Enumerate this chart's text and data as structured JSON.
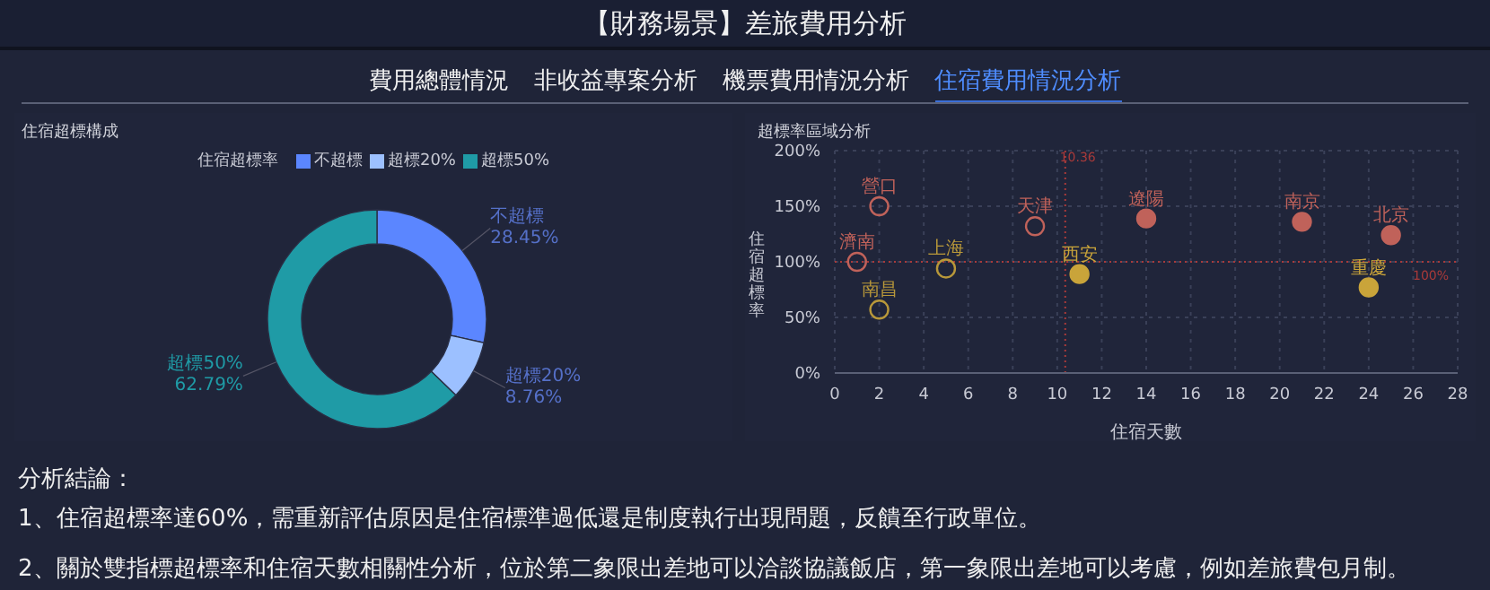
{
  "chart_data": [
    {
      "type": "other",
      "title": "【財務場景】差旅費用分析",
      "annotations": [
        "費用總體情況",
        "非收益專案分析",
        "機票費用情況分析",
        "住宿費用情況分析"
      ]
    },
    {
      "type": "donut",
      "title": "住宿超標構成",
      "legend_title": "住宿超標率",
      "legend": "top",
      "categories": [
        "不超標",
        "超標20%",
        "超標50%"
      ],
      "values": [
        28.45,
        8.76,
        62.79
      ],
      "value_labels": [
        "28.45%",
        "8.76%",
        "62.79%"
      ],
      "colors": [
        "#5b86ff",
        "#9cc0ff",
        "#1f9ba6"
      ]
    },
    {
      "type": "scatter",
      "title": "超標率區域分析",
      "xlabel": "住宿天數",
      "ylabel": "住宿超標率",
      "grid": true,
      "marker": "circle",
      "x": [
        2,
        1,
        9,
        5,
        2,
        11,
        14,
        21,
        25,
        24
      ],
      "values": [
        150,
        100,
        132,
        94,
        57,
        89,
        139,
        136,
        124,
        77
      ],
      "colors": [
        "#c0625a",
        "#c0625a",
        "#c0625a",
        "#b8983a",
        "#b8983a",
        "#c9a43a",
        "#c0625a",
        "#c0625a",
        "#c0625a",
        "#c9a43a"
      ],
      "xlim": [
        0,
        28
      ],
      "xticks": [
        0,
        2,
        4,
        6,
        8,
        10,
        12,
        14,
        16,
        18,
        20,
        22,
        24,
        26,
        28
      ],
      "ylim": [
        0,
        200
      ],
      "yticks": [
        {
          "value": 0,
          "label": "0%"
        },
        {
          "value": 50,
          "label": "50%"
        },
        {
          "value": 100,
          "label": "100%"
        },
        {
          "value": 150,
          "label": "150%"
        },
        {
          "value": 200,
          "label": "200%"
        }
      ],
      "ref_lines": [
        {
          "axis": "x",
          "value": 10.36,
          "label": "10.36",
          "color": "#a83a3a",
          "line_style": "dotted"
        },
        {
          "axis": "y",
          "value": 100,
          "label": "100%",
          "color": "#a83a3a",
          "line_style": "dotted"
        }
      ],
      "annotations": [
        {
          "text": "營口",
          "x": 2,
          "y": 150
        },
        {
          "text": "濟南",
          "x": 1,
          "y": 100
        },
        {
          "text": "天津",
          "x": 9,
          "y": 132
        },
        {
          "text": "上海",
          "x": 5,
          "y": 94
        },
        {
          "text": "南昌",
          "x": 2,
          "y": 57
        },
        {
          "text": "西安",
          "x": 11,
          "y": 89
        },
        {
          "text": "遼陽",
          "x": 14,
          "y": 139
        },
        {
          "text": "南京",
          "x": 21,
          "y": 136
        },
        {
          "text": "北京",
          "x": 25,
          "y": 124
        },
        {
          "text": "重慶",
          "x": 24,
          "y": 77
        }
      ]
    },
    {
      "type": "other",
      "title": "分析結論：",
      "annotations": [
        "1、住宿超標率達60%，需重新評估原因是住宿標準過低還是制度執行出現問題，反饋至行政單位。",
        "2、關於雙指標超標率和住宿天數相關性分析，位於第二象限出差地可以洽談協議飯店，第一象限出差地可以考慮，例如差旅費包月制。"
      ]
    }
  ]
}
